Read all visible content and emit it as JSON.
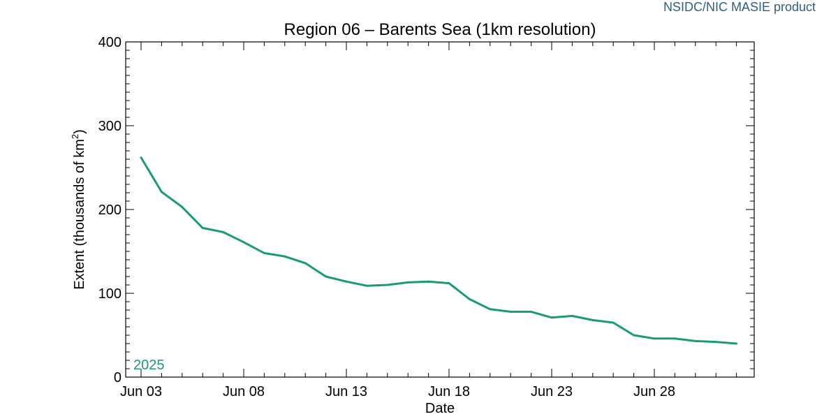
{
  "credit": "NSIDC/NIC MASIE product",
  "colors": {
    "series": "#1a9b72",
    "axis": "#000000",
    "credit": "#2e5f86",
    "background": "#ffffff"
  },
  "chart_data": {
    "type": "line",
    "title": "Region 06 – Barents Sea (1km resolution)",
    "xlabel": "Date",
    "ylabel": "Extent (thousands of km²)",
    "ylim": [
      0,
      400
    ],
    "yticks": [
      0,
      100,
      200,
      300,
      400
    ],
    "xlim": [
      "2025-06-03",
      "2025-07-03"
    ],
    "xticks": [
      "Jun 03",
      "Jun 08",
      "Jun 13",
      "Jun 18",
      "Jun 23",
      "Jun 28"
    ],
    "grid": false,
    "series": [
      {
        "name": "2025",
        "dates": [
          "2025-06-03",
          "2025-06-04",
          "2025-06-05",
          "2025-06-06",
          "2025-06-07",
          "2025-06-08",
          "2025-06-09",
          "2025-06-10",
          "2025-06-11",
          "2025-06-12",
          "2025-06-13",
          "2025-06-14",
          "2025-06-15",
          "2025-06-16",
          "2025-06-17",
          "2025-06-18",
          "2025-06-19",
          "2025-06-20",
          "2025-06-21",
          "2025-06-22",
          "2025-06-23",
          "2025-06-24",
          "2025-06-25",
          "2025-06-26",
          "2025-06-27",
          "2025-06-28",
          "2025-06-29",
          "2025-06-30",
          "2025-07-01",
          "2025-07-02"
        ],
        "values": [
          262,
          221,
          203,
          178,
          173,
          161,
          148,
          144,
          136,
          120,
          114,
          109,
          110,
          113,
          114,
          112,
          93,
          81,
          78,
          78,
          71,
          73,
          68,
          65,
          50,
          46,
          46,
          43,
          42,
          40
        ]
      }
    ]
  }
}
